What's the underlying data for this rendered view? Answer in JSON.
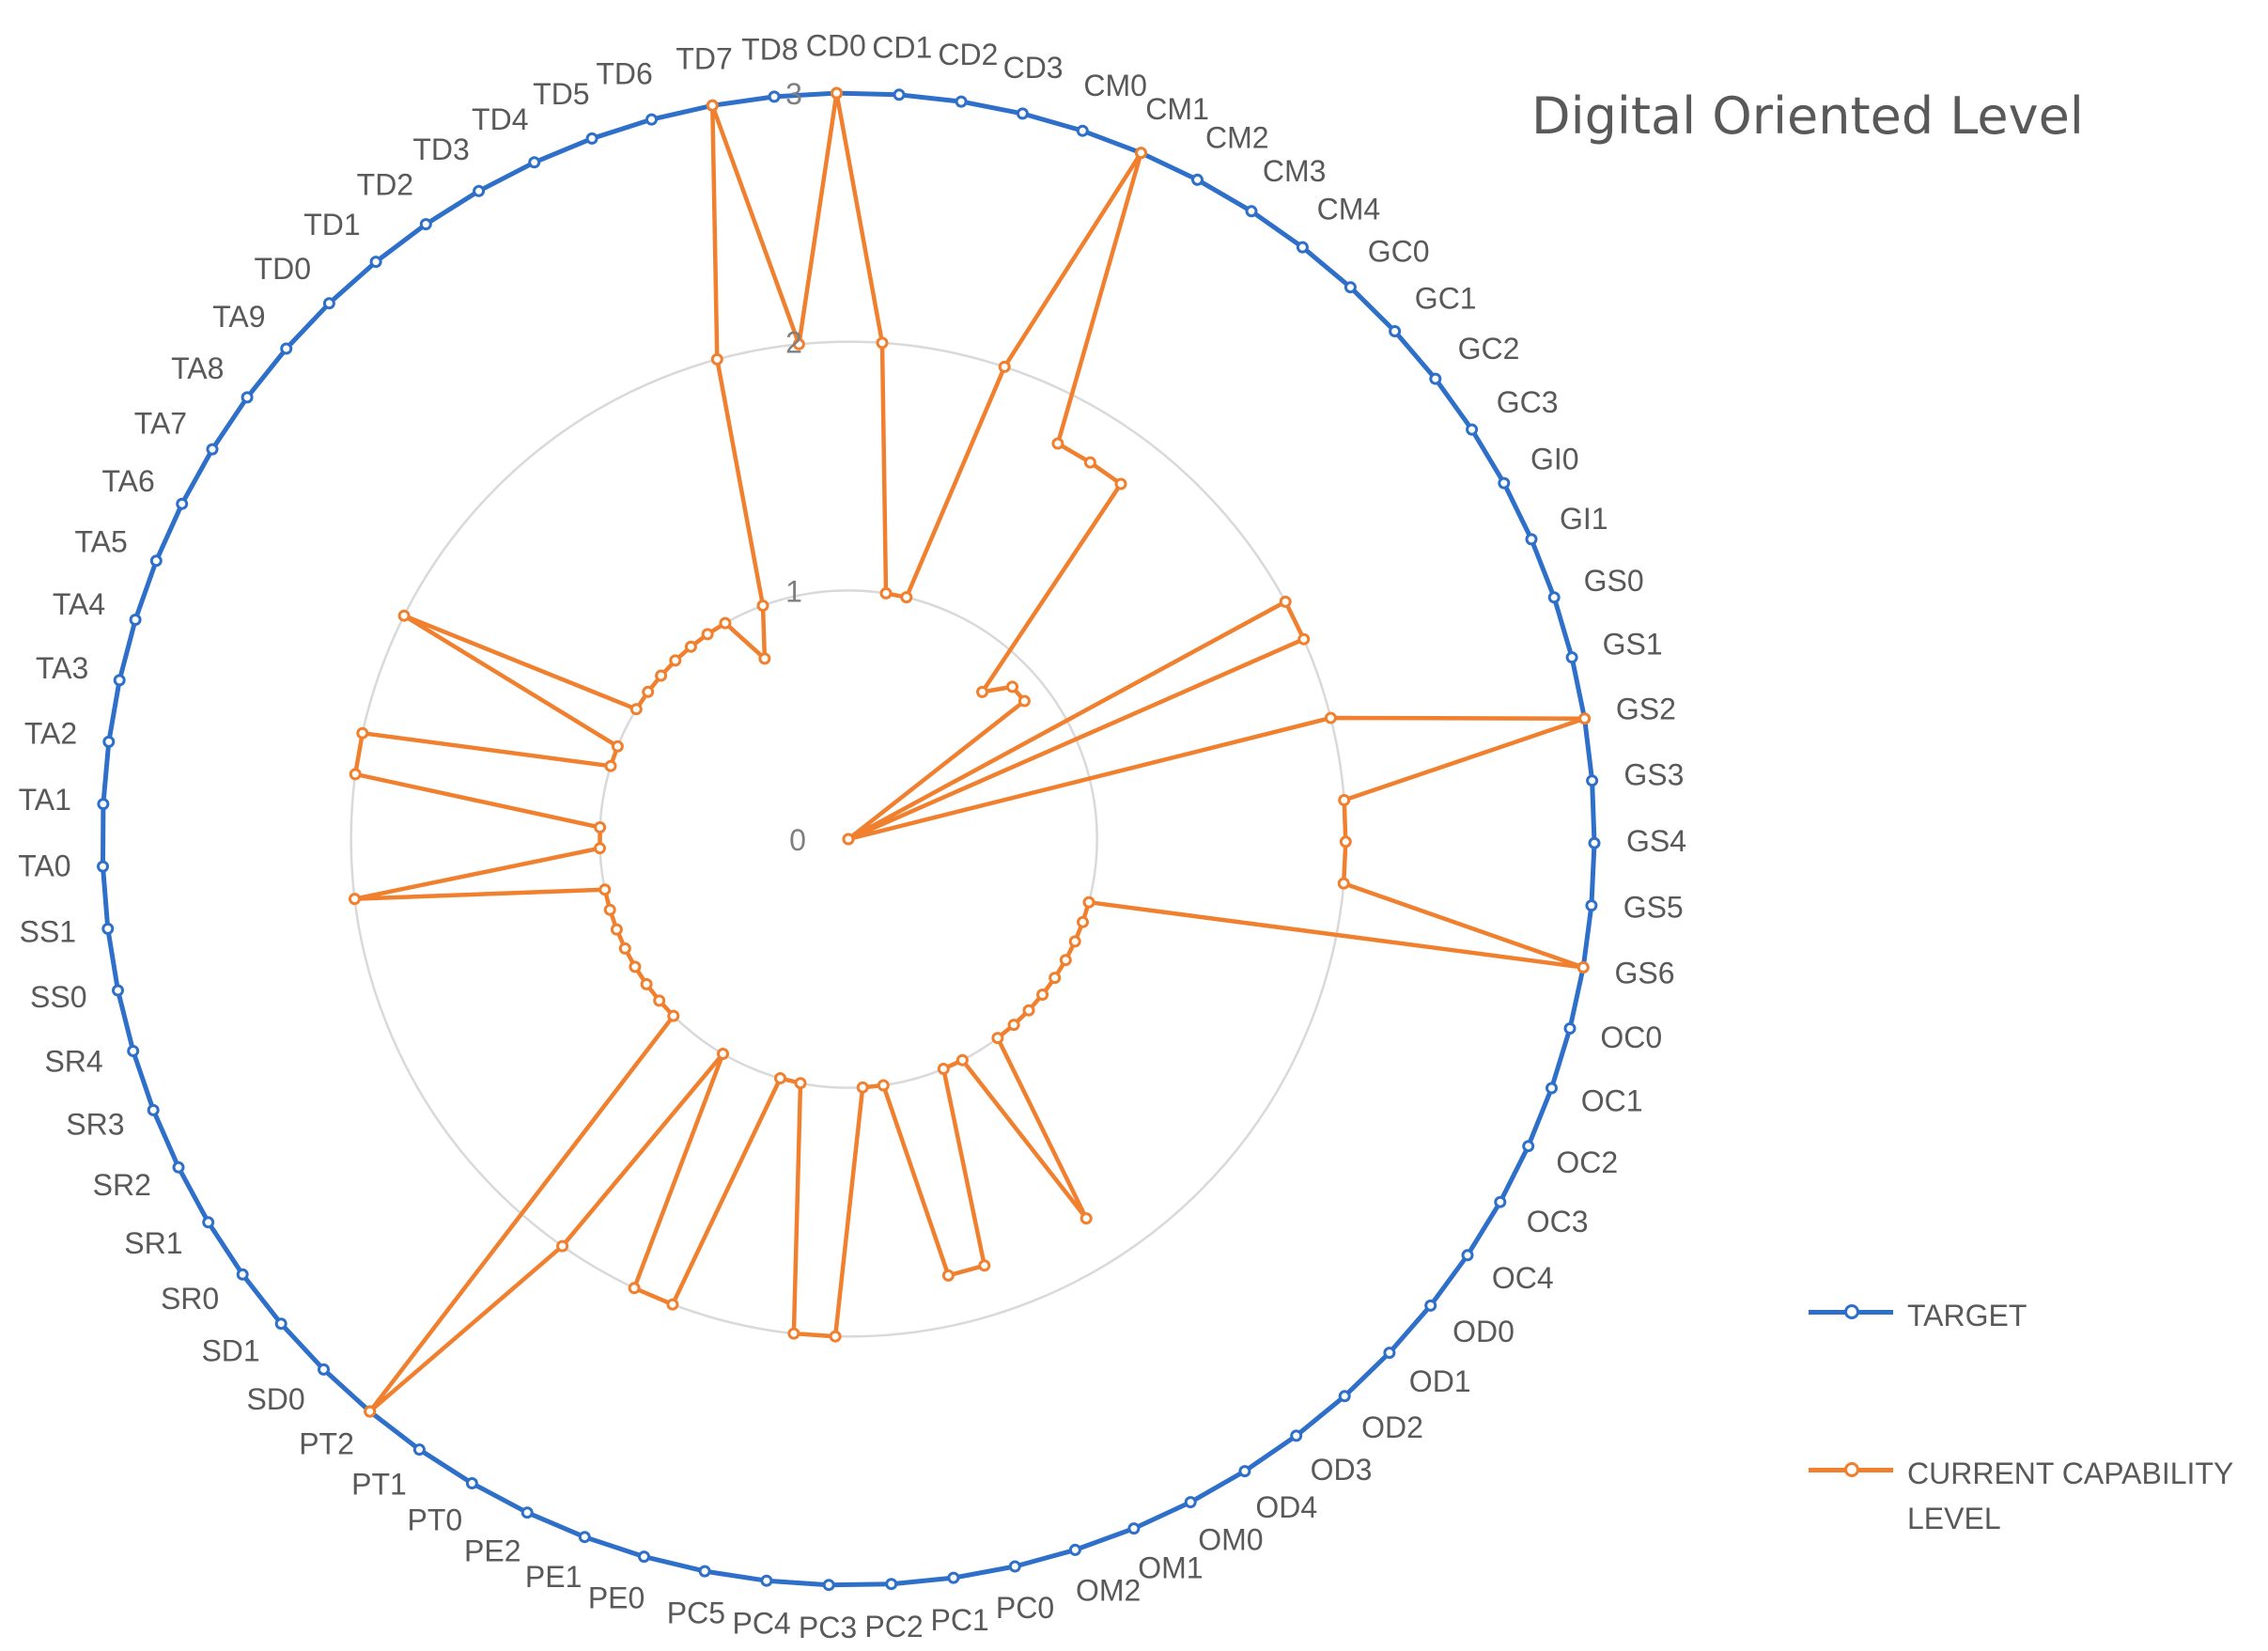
{
  "chart_data": {
    "type": "radar",
    "title": "Digital Oriented Level",
    "categories": [
      "CD0",
      "CD1",
      "CD2",
      "CD3",
      "CM0",
      "CM1",
      "CM2",
      "CM3",
      "CM4",
      "GC0",
      "GC1",
      "GC2",
      "GC3",
      "GI0",
      "GI1",
      "GS0",
      "GS1",
      "GS2",
      "GS3",
      "GS4",
      "GS5",
      "GS6",
      "OC0",
      "OC1",
      "OC2",
      "OC3",
      "OC4",
      "OD0",
      "OD1",
      "OD2",
      "OD3",
      "OD4",
      "OM0",
      "OM1",
      "OM2",
      "PC0",
      "PC1",
      "PC2",
      "PC3",
      "PC4",
      "PC5",
      "PE0",
      "PE1",
      "PE2",
      "PT0",
      "PT1",
      "PT2",
      "SD0",
      "SD1",
      "SR0",
      "SR1",
      "SR2",
      "SR3",
      "SR4",
      "SS0",
      "SS1",
      "TA0",
      "TA1",
      "TA2",
      "TA3",
      "TA4",
      "TA5",
      "TA6",
      "TA7",
      "TA8",
      "TA9",
      "TD0",
      "TD1",
      "TD2",
      "TD3",
      "TD4",
      "TD5",
      "TD6",
      "TD7",
      "TD8"
    ],
    "series": [
      {
        "name": "TARGET",
        "color": "#2E6FC9",
        "values": [
          3,
          3,
          3,
          3,
          3,
          3,
          3,
          3,
          3,
          3,
          3,
          3,
          3,
          3,
          3,
          3,
          3,
          3,
          3,
          3,
          3,
          3,
          3,
          3,
          3,
          3,
          3,
          3,
          3,
          3,
          3,
          3,
          3,
          3,
          3,
          3,
          3,
          3,
          3,
          3,
          3,
          3,
          3,
          3,
          3,
          3,
          3,
          3,
          3,
          3,
          3,
          3,
          3,
          3,
          3,
          3,
          3,
          3,
          3,
          3,
          3,
          3,
          3,
          3,
          3,
          3,
          3,
          3,
          3,
          3,
          3,
          3,
          3,
          3,
          3
        ]
      },
      {
        "name": "CURRENT CAPABILITY LEVEL",
        "color": "#F07F2E",
        "values": [
          3,
          2,
          1,
          1,
          2,
          3,
          1.8,
          1.8,
          1.8,
          0.8,
          0.9,
          0.9,
          0,
          2,
          2,
          0,
          2,
          3,
          2,
          2,
          2,
          3,
          1,
          1,
          1,
          1,
          1,
          1,
          1,
          1,
          1,
          1.8,
          1,
          1,
          1.8,
          1.8,
          1,
          1,
          2,
          2,
          1,
          1,
          2,
          2,
          1,
          2,
          3,
          1,
          1,
          1,
          1,
          1,
          1,
          1,
          1,
          2,
          1,
          1,
          2,
          2,
          1,
          1,
          2,
          1,
          1,
          1,
          1,
          1,
          1,
          1,
          0.8,
          1,
          2,
          3,
          2
        ]
      }
    ],
    "r_ticks": [
      "0",
      "1",
      "2",
      "3"
    ],
    "r_range": [
      0,
      3
    ],
    "grid": true,
    "legend_position": "right"
  }
}
